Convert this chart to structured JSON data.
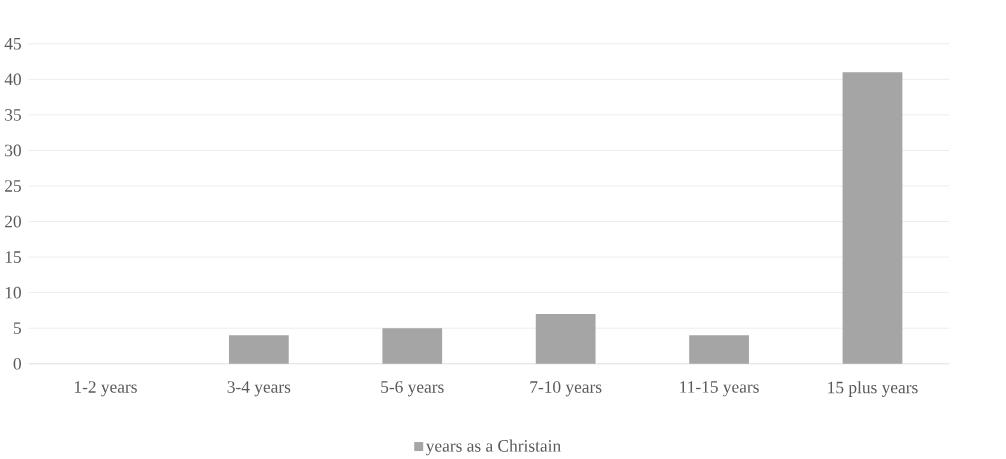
{
  "chart_data": {
    "type": "bar",
    "categories": [
      "1-2 years",
      "3-4 years",
      "5-6 years",
      "7-10 years",
      "11-15 years",
      "15 plus years"
    ],
    "series": [
      {
        "name": "years as a Christain",
        "color": "#a5a5a5",
        "values": [
          0,
          4,
          5,
          7,
          4,
          41
        ]
      }
    ],
    "ylim": [
      0,
      45
    ],
    "yticks": [
      0,
      5,
      10,
      15,
      20,
      25,
      30,
      35,
      40,
      45
    ],
    "grid": "y",
    "legend": "bottom"
  }
}
